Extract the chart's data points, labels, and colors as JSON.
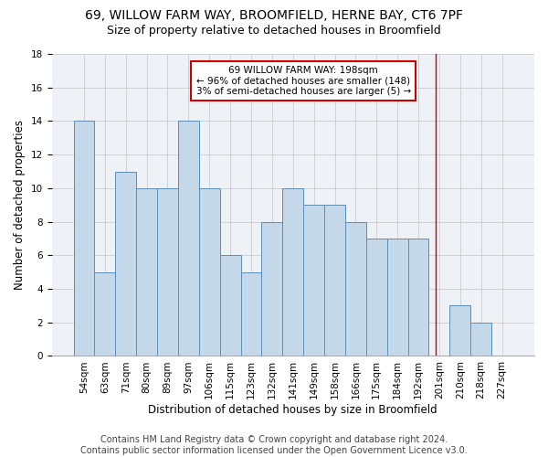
{
  "title1": "69, WILLOW FARM WAY, BROOMFIELD, HERNE BAY, CT6 7PF",
  "title2": "Size of property relative to detached houses in Broomfield",
  "xlabel": "Distribution of detached houses by size in Broomfield",
  "ylabel": "Number of detached properties",
  "footer1": "Contains HM Land Registry data © Crown copyright and database right 2024.",
  "footer2": "Contains public sector information licensed under the Open Government Licence v3.0.",
  "categories": [
    "54sqm",
    "63sqm",
    "71sqm",
    "80sqm",
    "89sqm",
    "97sqm",
    "106sqm",
    "115sqm",
    "123sqm",
    "132sqm",
    "141sqm",
    "149sqm",
    "158sqm",
    "166sqm",
    "175sqm",
    "184sqm",
    "192sqm",
    "201sqm",
    "210sqm",
    "218sqm",
    "227sqm"
  ],
  "values": [
    14,
    5,
    11,
    10,
    10,
    14,
    10,
    6,
    5,
    8,
    10,
    9,
    9,
    8,
    7,
    7,
    7,
    0,
    3,
    2,
    0
  ],
  "bar_color": "#c5d8ea",
  "bar_edge_color": "#5b8db8",
  "bar_linewidth": 0.7,
  "grid_color": "#cccccc",
  "annotation_text": "69 WILLOW FARM WAY: 198sqm\n← 96% of detached houses are smaller (148)\n3% of semi-detached houses are larger (5) →",
  "annotation_box_edge": "#cc0000",
  "vline_x_index": 16.85,
  "vline_color": "#cc0000",
  "ylim": [
    0,
    18
  ],
  "yticks": [
    0,
    2,
    4,
    6,
    8,
    10,
    12,
    14,
    16,
    18
  ],
  "title1_fontsize": 10,
  "title2_fontsize": 9,
  "xlabel_fontsize": 8.5,
  "ylabel_fontsize": 8.5,
  "tick_fontsize": 7.5,
  "footer_fontsize": 7,
  "annotation_fontsize": 7.5,
  "bg_color": "#eef2f7"
}
